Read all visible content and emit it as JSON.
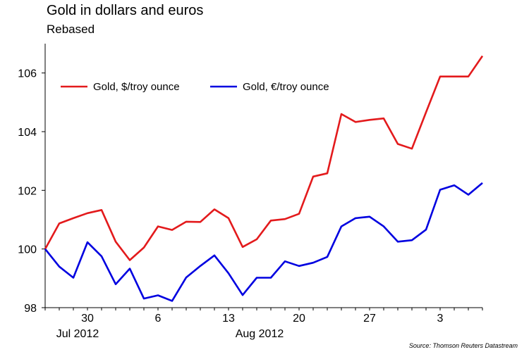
{
  "chart_data": {
    "type": "line",
    "title": "Gold in dollars and euros",
    "subtitle": "Rebased",
    "source": "Source: Thomson Reuters Datastream",
    "ylim": [
      98,
      107
    ],
    "yticks": [
      98,
      100,
      102,
      104,
      106
    ],
    "x_tick_labels": [
      {
        "label": "30",
        "index": 3
      },
      {
        "label": "6",
        "index": 8
      },
      {
        "label": "13",
        "index": 13
      },
      {
        "label": "20",
        "index": 18
      },
      {
        "label": "27",
        "index": 23
      },
      {
        "label": "3",
        "index": 28
      }
    ],
    "period_labels": [
      {
        "label": "Jul 2012",
        "index": 2.3
      },
      {
        "label": "Aug 2012",
        "index": 15.2
      }
    ],
    "grid": false,
    "legend": "top-left",
    "series": [
      {
        "name": "Gold, $/troy ounce",
        "color": "#e31a1c",
        "values": [
          100.0,
          100.87,
          101.05,
          101.22,
          101.33,
          100.25,
          99.62,
          100.05,
          100.77,
          100.65,
          100.93,
          100.92,
          101.35,
          101.05,
          100.07,
          100.33,
          100.97,
          101.02,
          101.2,
          102.47,
          102.58,
          104.6,
          104.33,
          104.4,
          104.45,
          103.58,
          103.42,
          104.66,
          105.88,
          105.88,
          105.88,
          106.58
        ]
      },
      {
        "name": "Gold, €/troy ounce",
        "color": "#0000e0",
        "values": [
          100.0,
          99.4,
          99.02,
          100.23,
          99.75,
          98.8,
          99.33,
          98.31,
          98.42,
          98.23,
          99.03,
          99.42,
          99.78,
          99.17,
          98.43,
          99.02,
          99.02,
          99.58,
          99.42,
          99.53,
          99.73,
          100.77,
          101.05,
          101.1,
          100.77,
          100.25,
          100.3,
          100.66,
          102.02,
          102.17,
          101.85,
          102.25
        ]
      }
    ]
  }
}
